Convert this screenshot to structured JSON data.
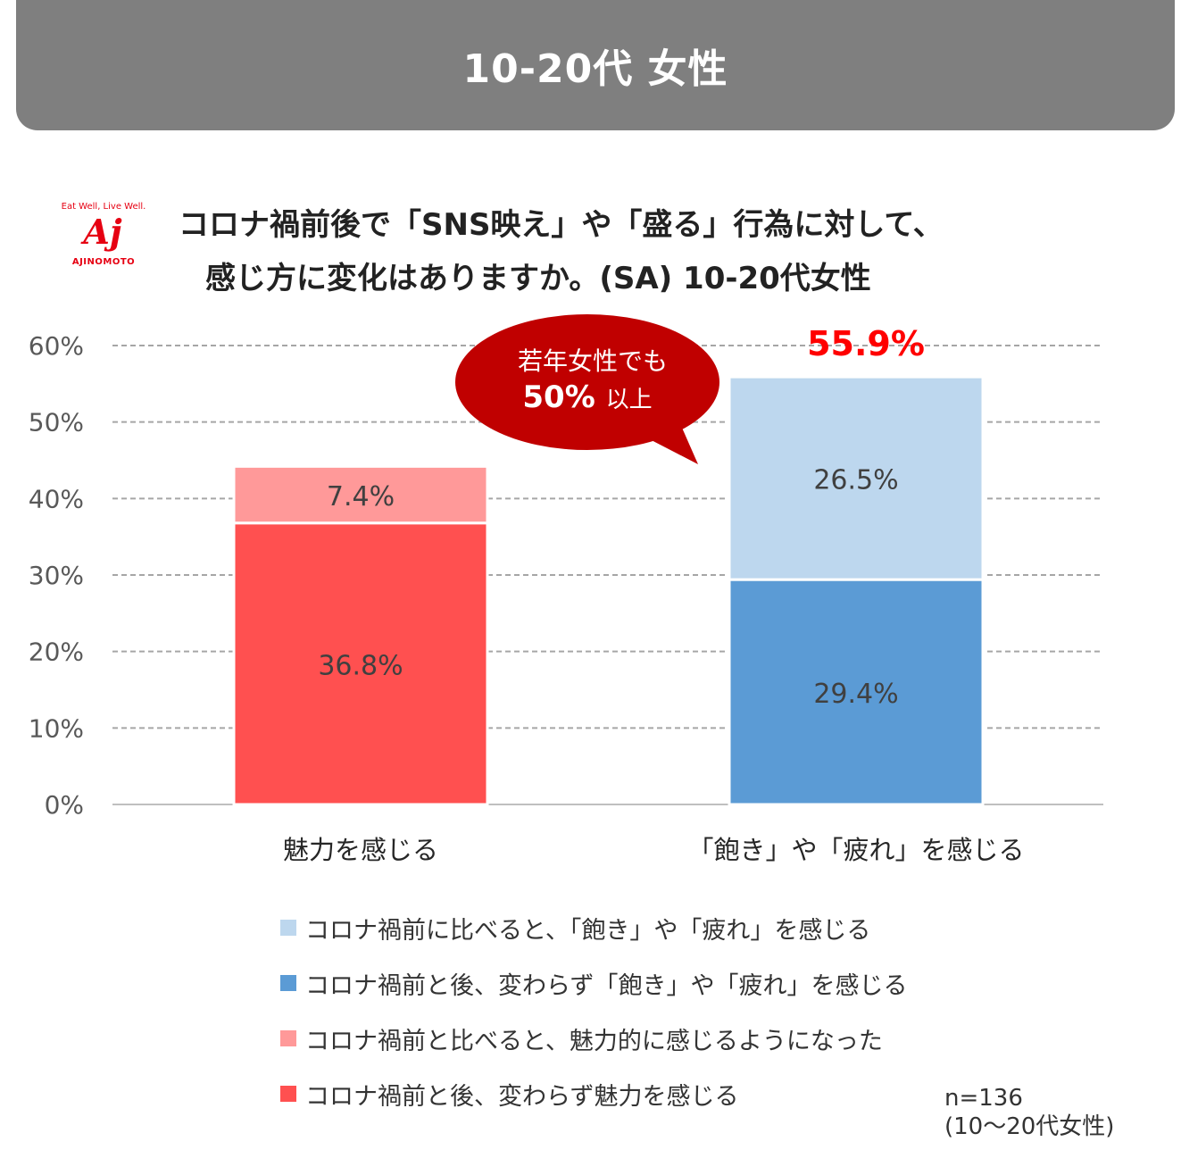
{
  "header": {
    "title": "10-20代 女性"
  },
  "logo": {
    "tagline": "Eat Well, Live Well.",
    "mark": "Aj",
    "name": "AJINOMOTO"
  },
  "chart_title": {
    "line1": "コロナ禍前後で「SNS映え」や「盛る」行為に対して、",
    "line2": "感じ方に変化はありますか。(SA) 10-20代女性"
  },
  "callout": {
    "line1": "若年女性でも",
    "line2_strong": "50%",
    "line2_suffix": "以上",
    "color": "#c00000"
  },
  "total_label": {
    "text": "55.9%",
    "color": "#ff0000"
  },
  "chart_data": {
    "type": "bar",
    "stacked": true,
    "categories": [
      "魅力を感じる",
      "「飽き」や「疲れ」を感じる"
    ],
    "ylim": [
      0,
      60
    ],
    "yticks": [
      "0%",
      "10%",
      "20%",
      "30%",
      "40%",
      "50%",
      "60%"
    ],
    "ytick_values": [
      0,
      10,
      20,
      30,
      40,
      50,
      60
    ],
    "grid": true,
    "series": [
      {
        "name": "コロナ禍前と後、変わらず魅力を感じる",
        "category_index": 0,
        "value": 36.8,
        "label": "36.8%",
        "color": "#ff5050"
      },
      {
        "name": "コロナ禍前と比べると、魅力的に感じるようになった",
        "category_index": 0,
        "value": 7.4,
        "label": "7.4%",
        "color": "#ff9999"
      },
      {
        "name": "コロナ禍前と後、変わらず「飽き」や「疲れ」を感じる",
        "category_index": 1,
        "value": 29.4,
        "label": "29.4%",
        "color": "#5b9bd5"
      },
      {
        "name": "コロナ禍前に比べると、「飽き」や「疲れ」を感じる",
        "category_index": 1,
        "value": 26.5,
        "label": "26.5%",
        "color": "#bdd7ee"
      }
    ]
  },
  "legend": [
    {
      "label": "コロナ禍前に比べると、「飽き」や「疲れ」を感じる",
      "color": "#bdd7ee"
    },
    {
      "label": "コロナ禍前と後、変わらず「飽き」や「疲れ」を感じる",
      "color": "#5b9bd5"
    },
    {
      "label": "コロナ禍前と比べると、魅力的に感じるようになった",
      "color": "#ff9999"
    },
    {
      "label": "コロナ禍前と後、変わらず魅力を感じる",
      "color": "#ff5050"
    }
  ],
  "note": {
    "line1": "n=136",
    "line2": "(10〜20代女性)"
  }
}
